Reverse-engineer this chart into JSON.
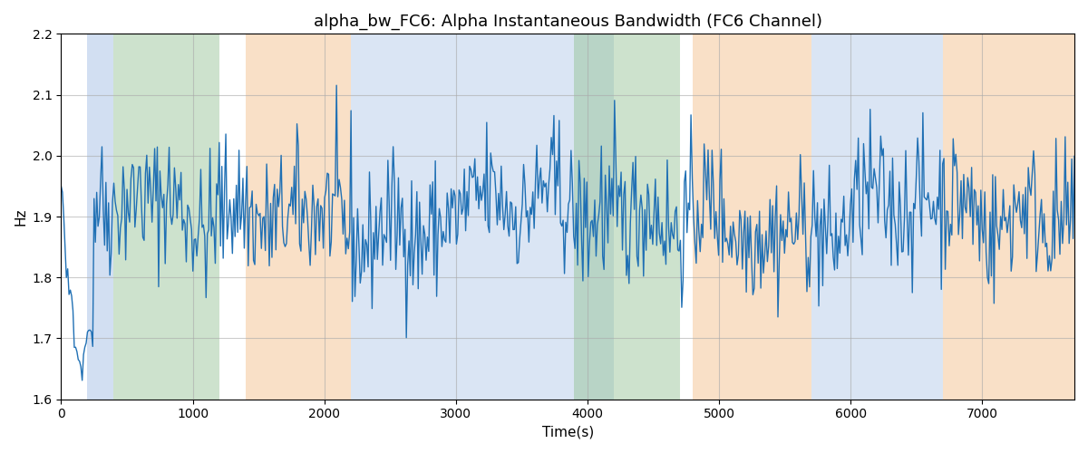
{
  "title": "alpha_bw_FC6: Alpha Instantaneous Bandwidth (FC6 Channel)",
  "xlabel": "Time(s)",
  "ylabel": "Hz",
  "ylim": [
    1.6,
    2.2
  ],
  "xlim": [
    0,
    7700
  ],
  "line_color": "#2070b4",
  "line_width": 1.0,
  "bg_color": "white",
  "bands": [
    {
      "xmin": 200,
      "xmax": 400,
      "color": "#aec6e8",
      "alpha": 0.55
    },
    {
      "xmin": 400,
      "xmax": 1200,
      "color": "#90c090",
      "alpha": 0.45
    },
    {
      "xmin": 1400,
      "xmax": 2200,
      "color": "#f5c89a",
      "alpha": 0.55
    },
    {
      "xmin": 2200,
      "xmax": 3900,
      "color": "#aec6e8",
      "alpha": 0.45
    },
    {
      "xmin": 3900,
      "xmax": 4200,
      "color": "#aec6e8",
      "alpha": 0.45
    },
    {
      "xmin": 3900,
      "xmax": 4700,
      "color": "#90c090",
      "alpha": 0.45
    },
    {
      "xmin": 4800,
      "xmax": 5700,
      "color": "#f5c89a",
      "alpha": 0.55
    },
    {
      "xmin": 5700,
      "xmax": 6700,
      "color": "#aec6e8",
      "alpha": 0.45
    },
    {
      "xmin": 6700,
      "xmax": 7700,
      "color": "#f5c89a",
      "alpha": 0.55
    }
  ],
  "seed": 42,
  "n_points": 770,
  "total_time": 7700,
  "mean": 1.9,
  "std": 0.055,
  "title_fontsize": 13,
  "tick_labelsize": 10,
  "axis_labelsize": 11,
  "grid_color": "#aaaaaa",
  "grid_alpha": 0.6
}
